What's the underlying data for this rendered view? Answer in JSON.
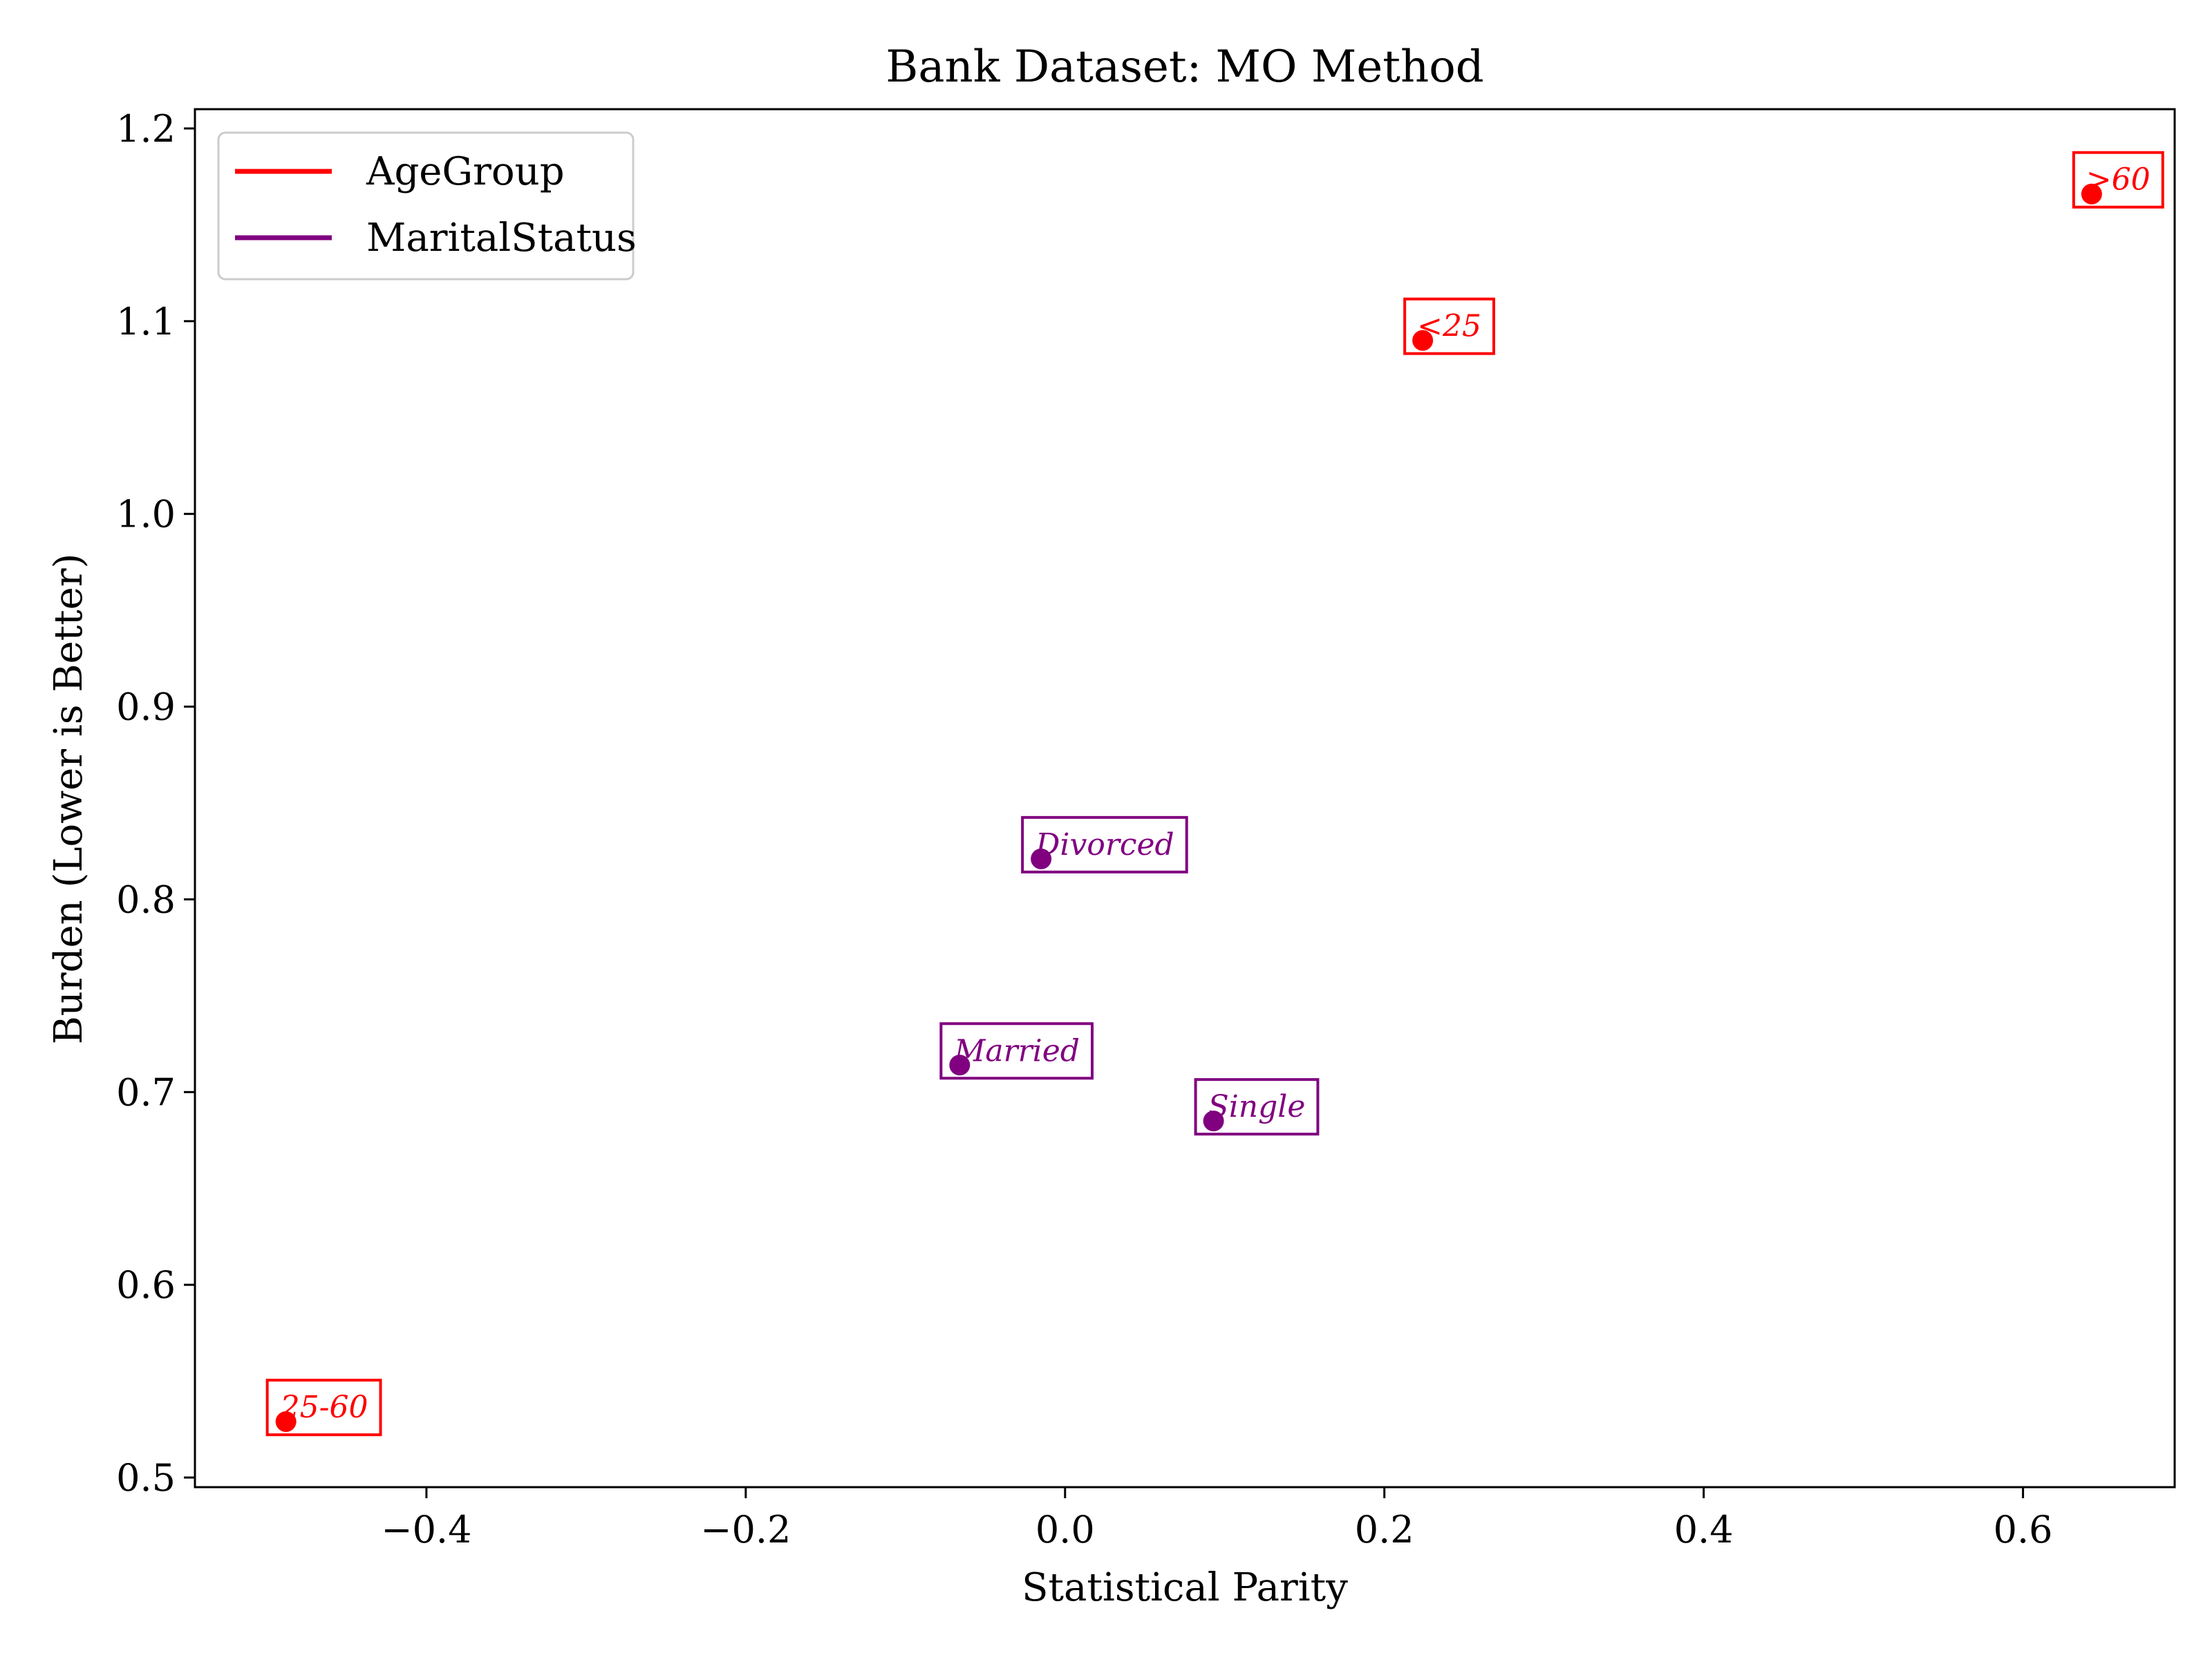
{
  "chart_data": {
    "type": "scatter",
    "title": "Bank Dataset: MO Method",
    "xlabel": "Statistical Parity",
    "ylabel": "Burden (Lower is Better)",
    "xlim": [
      -0.545,
      0.695
    ],
    "ylim": [
      0.495,
      1.21
    ],
    "xticks": [
      {
        "value": -0.4,
        "label": "−0.4"
      },
      {
        "value": -0.2,
        "label": "−0.2"
      },
      {
        "value": 0.0,
        "label": "0.0"
      },
      {
        "value": 0.2,
        "label": "0.2"
      },
      {
        "value": 0.4,
        "label": "0.4"
      },
      {
        "value": 0.6,
        "label": "0.6"
      }
    ],
    "yticks": [
      {
        "value": 0.5,
        "label": "0.5"
      },
      {
        "value": 0.6,
        "label": "0.6"
      },
      {
        "value": 0.7,
        "label": "0.7"
      },
      {
        "value": 0.8,
        "label": "0.8"
      },
      {
        "value": 0.9,
        "label": "0.9"
      },
      {
        "value": 1.0,
        "label": "1.0"
      },
      {
        "value": 1.1,
        "label": "1.1"
      },
      {
        "value": 1.2,
        "label": "1.2"
      }
    ],
    "grid": false,
    "legend": {
      "position": "top-left",
      "entries": [
        {
          "label": "AgeGroup",
          "color": "#ff0000"
        },
        {
          "label": "MaritalStatus",
          "color": "#800080"
        }
      ]
    },
    "series": [
      {
        "name": "AgeGroup",
        "color": "#ff0000",
        "points": [
          {
            "label": ">60",
            "x": 0.643,
            "y": 1.166
          },
          {
            "label": "<25",
            "x": 0.224,
            "y": 1.09
          },
          {
            "label": "25-60",
            "x": -0.488,
            "y": 0.529
          }
        ]
      },
      {
        "name": "MaritalStatus",
        "color": "#800080",
        "points": [
          {
            "label": "Divorced",
            "x": -0.015,
            "y": 0.821
          },
          {
            "label": "Married",
            "x": -0.066,
            "y": 0.714
          },
          {
            "label": "Single",
            "x": 0.093,
            "y": 0.685
          }
        ]
      }
    ]
  }
}
